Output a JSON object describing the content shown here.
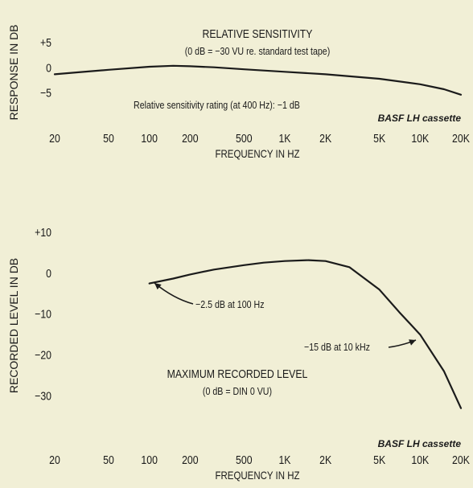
{
  "chart_data": [
    {
      "type": "line",
      "title": "RELATIVE SENSITIVITY",
      "subtitle": "(0 dB = −30 VU re. standard test tape)",
      "annotation": "Relative sensitivity rating (at 400 Hz): −1 dB",
      "source_label": "BASF LH cassette",
      "xlabel": "FREQUENCY IN HZ",
      "ylabel": "RESPONSE IN DB",
      "x_scale": "log",
      "xlim": [
        20,
        20000
      ],
      "ylim": [
        -8,
        6
      ],
      "grid": false,
      "x_ticks": [
        20,
        50,
        100,
        200,
        500,
        1000,
        2000,
        5000,
        10000,
        20000
      ],
      "x_tick_labels": [
        "20",
        "50",
        "100",
        "200",
        "500",
        "1K",
        "2K",
        "5K",
        "10K",
        "20K"
      ],
      "y_ticks": [
        5,
        0,
        -5
      ],
      "y_tick_labels": [
        "+5",
        "0",
        "−5"
      ],
      "series": [
        {
          "x": [
            20,
            30,
            50,
            100,
            150,
            200,
            300,
            500,
            1000,
            2000,
            5000,
            10000,
            15000,
            20000
          ],
          "y": [
            -1.3,
            -0.9,
            -0.4,
            0.2,
            0.4,
            0.3,
            0.1,
            -0.3,
            -0.8,
            -1.3,
            -2.2,
            -3.3,
            -4.3,
            -5.4
          ]
        }
      ]
    },
    {
      "type": "line",
      "title": "MAXIMUM RECORDED LEVEL",
      "subtitle": "(0 dB = DIN 0 VU)",
      "annotations": [
        "−2.5 dB at 100 Hz",
        "−15 dB at 10 kHz"
      ],
      "source_label": "BASF LH cassette",
      "xlabel": "FREQUENCY IN HZ",
      "ylabel": "RECORDED LEVEL IN DB",
      "x_scale": "log",
      "xlim": [
        20,
        20000
      ],
      "ylim": [
        -37,
        11
      ],
      "grid": false,
      "x_ticks": [
        20,
        50,
        100,
        200,
        500,
        1000,
        2000,
        5000,
        10000,
        20000
      ],
      "x_tick_labels": [
        "20",
        "50",
        "100",
        "200",
        "500",
        "1K",
        "2K",
        "5K",
        "10K",
        "20K"
      ],
      "y_ticks": [
        10,
        0,
        -10,
        -20,
        -30
      ],
      "y_tick_labels": [
        "+10",
        "0",
        "−10",
        "−20",
        "−30"
      ],
      "series": [
        {
          "x": [
            100,
            150,
            200,
            300,
            500,
            700,
            1000,
            1500,
            2000,
            3000,
            5000,
            7000,
            10000,
            15000,
            20000
          ],
          "y": [
            -2.5,
            -1.3,
            -0.3,
            0.9,
            2.0,
            2.6,
            3.0,
            3.2,
            3.0,
            1.5,
            -4.0,
            -9.5,
            -15.0,
            -24.0,
            -33.0
          ]
        }
      ]
    }
  ]
}
